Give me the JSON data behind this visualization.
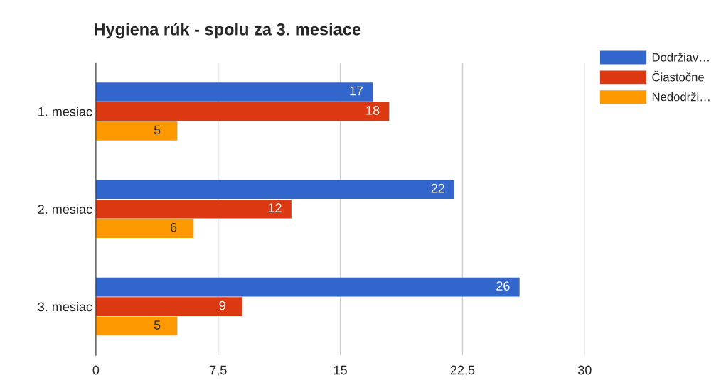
{
  "chart_data": {
    "type": "bar",
    "orientation": "horizontal",
    "title": "Hygiena rúk - spolu za 3. mesiace",
    "categories": [
      "1. mesiac",
      "2. mesiac",
      "3. mesiac"
    ],
    "series": [
      {
        "name": "Dodržiav…",
        "color": "#3366cc",
        "values": [
          17,
          22,
          26
        ]
      },
      {
        "name": "Čiastočne",
        "color": "#dc3912",
        "values": [
          18,
          12,
          9
        ]
      },
      {
        "name": "Nedodrži…",
        "color": "#ff9900",
        "values": [
          5,
          6,
          5
        ]
      }
    ],
    "xlim": [
      0,
      30
    ],
    "xticks": [
      0,
      {
        "value": 7.5,
        "label": "7,5"
      },
      15,
      {
        "value": 22.5,
        "label": "22,5"
      },
      30
    ],
    "grid": "x",
    "legend": "top right",
    "data_labels": true
  }
}
